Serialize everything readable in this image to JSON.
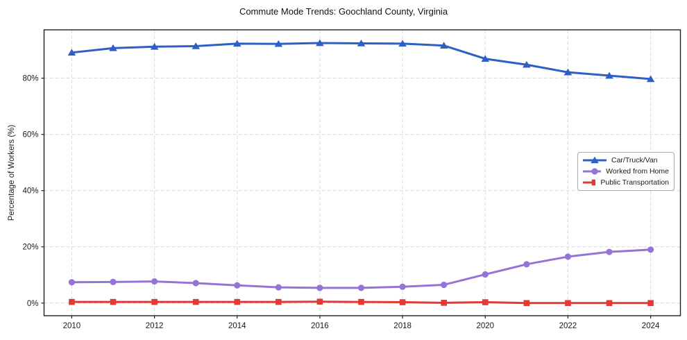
{
  "chart_data": {
    "type": "line",
    "title": "Commute Mode Trends: Goochland County, Virginia",
    "xlabel": "",
    "ylabel": "Percentage of Workers (%)",
    "x": [
      2010,
      2011,
      2012,
      2013,
      2014,
      2015,
      2016,
      2017,
      2018,
      2019,
      2020,
      2021,
      2022,
      2023,
      2024
    ],
    "x_ticks": [
      2010,
      2012,
      2014,
      2016,
      2018,
      2020,
      2022,
      2024
    ],
    "x_tick_labels": [
      "2010",
      "2012",
      "2014",
      "2016",
      "2018",
      "2020",
      "2022",
      "2024"
    ],
    "y_ticks": [
      0,
      20,
      40,
      60,
      80
    ],
    "y_tick_labels": [
      "0%",
      "20%",
      "40%",
      "60%",
      "80%"
    ],
    "xlim": [
      2009.33,
      2024.72
    ],
    "ylim": [
      -4.5,
      97.2
    ],
    "grid": true,
    "grid_style": "dashed",
    "legend_position": "center-right",
    "series": [
      {
        "name": "Car/Truck/Van",
        "color": "#2d5fc4",
        "marker": "triangle-up",
        "values": [
          89.1,
          90.7,
          91.2,
          91.4,
          92.3,
          92.2,
          92.5,
          92.4,
          92.3,
          91.6,
          86.9,
          84.8,
          82.1,
          80.9,
          79.7
        ]
      },
      {
        "name": "Worked from Home",
        "color": "#9673d6",
        "marker": "circle",
        "values": [
          7.4,
          7.5,
          7.7,
          7.1,
          6.3,
          5.6,
          5.4,
          5.4,
          5.8,
          6.5,
          10.2,
          13.8,
          16.5,
          18.2,
          19.0
        ]
      },
      {
        "name": "Public Transportation",
        "color": "#e23a36",
        "marker": "square",
        "values": [
          0.4,
          0.4,
          0.4,
          0.4,
          0.4,
          0.4,
          0.5,
          0.4,
          0.3,
          0.1,
          0.3,
          0.0,
          0.0,
          0.0,
          0.0
        ]
      }
    ]
  }
}
